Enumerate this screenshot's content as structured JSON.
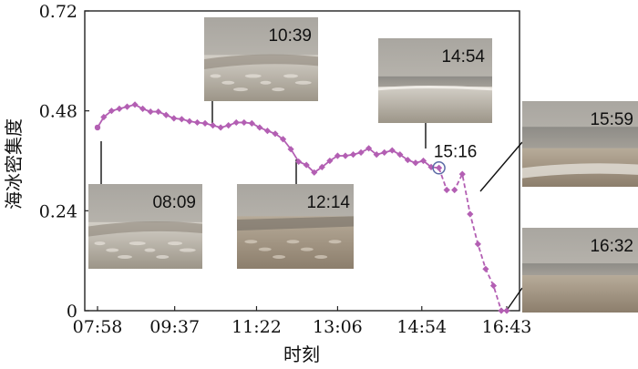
{
  "chart_data": {
    "type": "line",
    "xlabel": "时刻",
    "ylabel": "海冰密集度",
    "x_ticks": [
      "07:58",
      "09:37",
      "11:22",
      "13:06",
      "14:54",
      "16:43"
    ],
    "y_ticks": [
      "0",
      "0.24",
      "0.48",
      "0.72"
    ],
    "xlim": [
      "07:58",
      "16:43"
    ],
    "ylim": [
      0,
      0.72
    ],
    "grid": false,
    "series": [
      {
        "color": "#b35fb3",
        "highlight_x": "15:16",
        "points": [
          [
            "07:58",
            0.44
          ],
          [
            "08:06",
            0.465
          ],
          [
            "08:16",
            0.48
          ],
          [
            "08:26",
            0.485
          ],
          [
            "08:36",
            0.49
          ],
          [
            "08:46",
            0.495
          ],
          [
            "08:56",
            0.485
          ],
          [
            "09:06",
            0.478
          ],
          [
            "09:16",
            0.478
          ],
          [
            "09:26",
            0.47
          ],
          [
            "09:36",
            0.462
          ],
          [
            "09:46",
            0.46
          ],
          [
            "09:56",
            0.455
          ],
          [
            "10:06",
            0.452
          ],
          [
            "10:16",
            0.45
          ],
          [
            "10:26",
            0.445
          ],
          [
            "10:36",
            0.44
          ],
          [
            "10:46",
            0.445
          ],
          [
            "10:56",
            0.452
          ],
          [
            "11:06",
            0.452
          ],
          [
            "11:16",
            0.45
          ],
          [
            "11:26",
            0.44
          ],
          [
            "11:36",
            0.432
          ],
          [
            "11:46",
            0.425
          ],
          [
            "11:56",
            0.412
          ],
          [
            "12:06",
            0.388
          ],
          [
            "12:16",
            0.358
          ],
          [
            "12:26",
            0.35
          ],
          [
            "12:36",
            0.332
          ],
          [
            "12:46",
            0.345
          ],
          [
            "12:56",
            0.36
          ],
          [
            "13:06",
            0.372
          ],
          [
            "13:16",
            0.372
          ],
          [
            "13:26",
            0.375
          ],
          [
            "13:36",
            0.38
          ],
          [
            "13:46",
            0.39
          ],
          [
            "13:56",
            0.375
          ],
          [
            "14:06",
            0.38
          ],
          [
            "14:16",
            0.385
          ],
          [
            "14:26",
            0.375
          ],
          [
            "14:36",
            0.362
          ],
          [
            "14:46",
            0.355
          ],
          [
            "14:56",
            0.36
          ],
          [
            "15:06",
            0.345
          ],
          [
            "15:16",
            0.343
          ],
          [
            "15:26",
            0.29
          ],
          [
            "15:36",
            0.29
          ],
          [
            "15:46",
            0.328
          ],
          [
            "15:56",
            0.232
          ],
          [
            "16:06",
            0.16
          ],
          [
            "16:16",
            0.1
          ],
          [
            "16:26",
            0.06
          ],
          [
            "16:36",
            0.0
          ],
          [
            "16:43",
            0.0
          ]
        ]
      }
    ],
    "annotations": [
      {
        "time": "08:09",
        "label": "08:09",
        "photo": "ice-covered-beach"
      },
      {
        "time": "10:39",
        "label": "10:39",
        "photo": "ice-covered-beach"
      },
      {
        "time": "12:14",
        "label": "12:14",
        "photo": "partially-ice-covered-beach"
      },
      {
        "time": "14:54",
        "label": "14:54",
        "photo": "ice-band-at-shore"
      },
      {
        "time": "15:16",
        "label": "15:16",
        "photo": null
      },
      {
        "time": "15:59",
        "label": "15:59",
        "photo": "thin-ice-strip-at-waterline"
      },
      {
        "time": "16:32",
        "label": "16:32",
        "photo": "ice-free-beach"
      }
    ]
  }
}
